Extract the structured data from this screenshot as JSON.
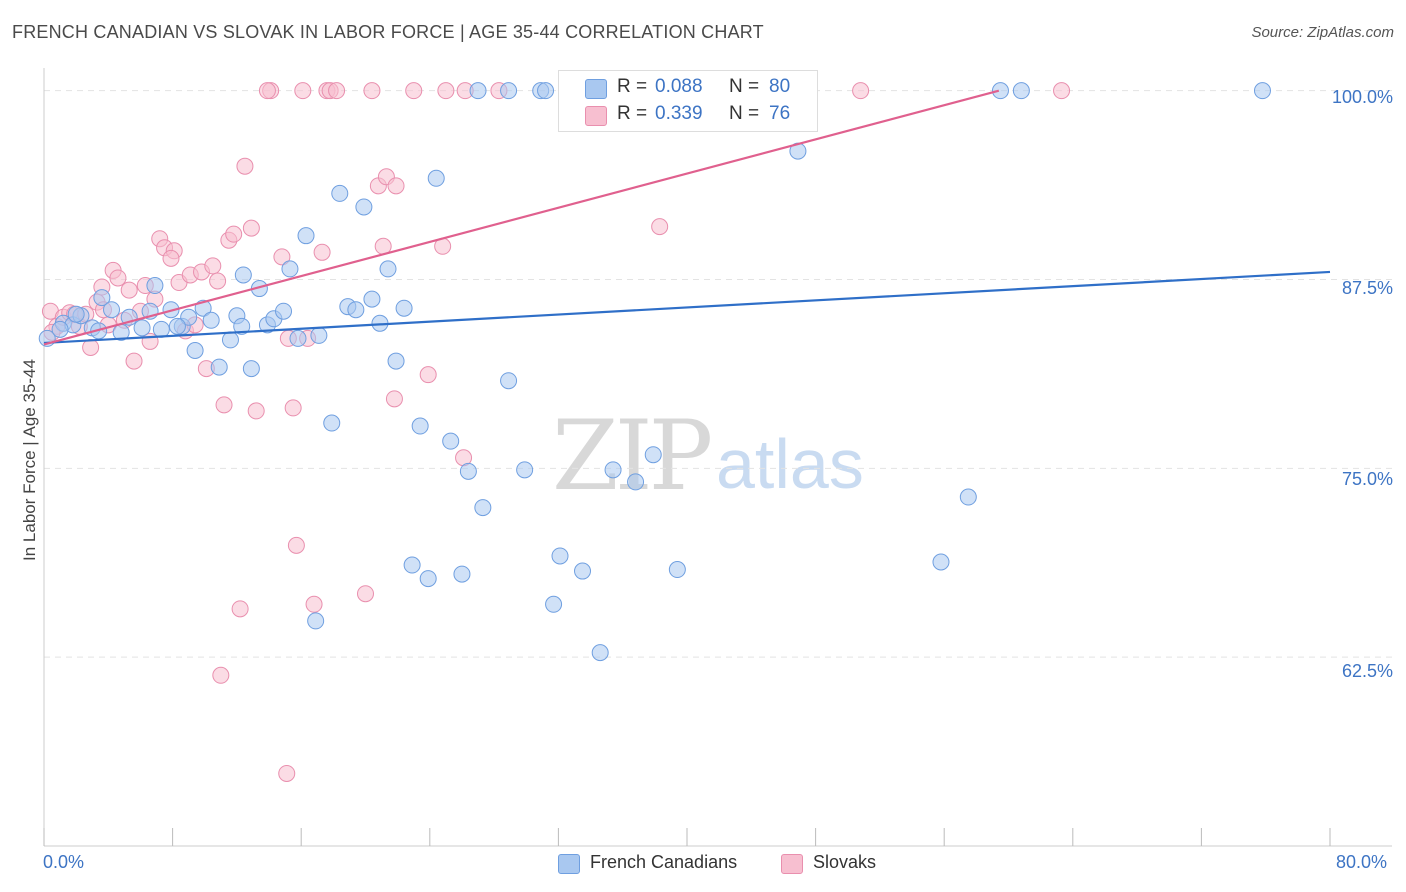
{
  "title": "FRENCH CANADIAN VS SLOVAK IN LABOR FORCE | AGE 35-44 CORRELATION CHART",
  "source": "Source: ZipAtlas.com",
  "watermark": {
    "zip": "ZIP",
    "atlas": "atlas"
  },
  "colors": {
    "blue_fill": "#a9c8f0",
    "blue_stroke": "#6f9fe0",
    "blue_line": "#2f6fc8",
    "pink_fill": "#f7bfd0",
    "pink_stroke": "#e98fae",
    "pink_line": "#e0608e",
    "axis_text": "#3d74c4",
    "grid": "#e3e3e3"
  },
  "legend": {
    "rows": [
      {
        "r_label": "R =",
        "r_value": "0.088",
        "n_label": "N =",
        "n_value": "80"
      },
      {
        "r_label": "R =",
        "r_value": "0.339",
        "n_label": "N =",
        "n_value": "76"
      }
    ]
  },
  "bottom_legend": {
    "series1": "French Canadians",
    "series2": "Slovaks"
  },
  "chart_data": {
    "type": "scatter",
    "title": "FRENCH CANADIAN VS SLOVAK IN LABOR FORCE | AGE 35-44 CORRELATION CHART",
    "xlabel": "",
    "ylabel": "In Labor Force | Age 35-44",
    "xlim": [
      0,
      80
    ],
    "ylim": [
      50,
      101.5
    ],
    "x_tick_labels": [
      "0.0%",
      "80.0%"
    ],
    "y_tick_labels": [
      "100.0%",
      "87.5%",
      "75.0%",
      "62.5%"
    ],
    "y_ticks": [
      100,
      87.5,
      75,
      62.5
    ],
    "series": [
      {
        "name": "French Canadians",
        "R": 0.088,
        "N": 80,
        "trend": {
          "x": [
            0,
            80
          ],
          "y": [
            83.3,
            88.0
          ]
        },
        "points": [
          [
            0.2,
            83.6
          ],
          [
            1.2,
            84.6
          ],
          [
            1.8,
            84.5
          ],
          [
            2.3,
            85.1
          ],
          [
            3.0,
            84.3
          ],
          [
            3.6,
            86.3
          ],
          [
            4.2,
            85.5
          ],
          [
            4.8,
            84.0
          ],
          [
            5.3,
            85.0
          ],
          [
            6.1,
            84.3
          ],
          [
            6.6,
            85.4
          ],
          [
            6.9,
            87.1
          ],
          [
            7.3,
            84.2
          ],
          [
            7.9,
            85.5
          ],
          [
            8.6,
            84.4
          ],
          [
            9.0,
            85.0
          ],
          [
            9.4,
            82.8
          ],
          [
            9.9,
            85.6
          ],
          [
            10.4,
            84.8
          ],
          [
            10.9,
            81.7
          ],
          [
            11.6,
            83.5
          ],
          [
            12.0,
            85.1
          ],
          [
            12.4,
            87.8
          ],
          [
            12.9,
            81.6
          ],
          [
            13.4,
            86.9
          ],
          [
            13.9,
            84.5
          ],
          [
            14.3,
            84.9
          ],
          [
            14.9,
            85.4
          ],
          [
            15.3,
            88.2
          ],
          [
            15.8,
            83.6
          ],
          [
            16.3,
            90.4
          ],
          [
            17.1,
            83.8
          ],
          [
            17.9,
            78.0
          ],
          [
            18.4,
            93.2
          ],
          [
            18.9,
            85.7
          ],
          [
            19.4,
            85.5
          ],
          [
            19.9,
            92.3
          ],
          [
            20.4,
            86.2
          ],
          [
            20.9,
            84.6
          ],
          [
            21.4,
            88.2
          ],
          [
            21.9,
            82.1
          ],
          [
            22.4,
            85.6
          ],
          [
            22.9,
            68.6
          ],
          [
            23.4,
            77.8
          ],
          [
            23.9,
            67.7
          ],
          [
            24.4,
            94.2
          ],
          [
            25.3,
            76.8
          ],
          [
            26.0,
            68.0
          ],
          [
            26.4,
            74.8
          ],
          [
            27.3,
            72.4
          ],
          [
            28.9,
            80.8
          ],
          [
            29.9,
            74.9
          ],
          [
            31.7,
            66.0
          ],
          [
            32.1,
            69.2
          ],
          [
            33.5,
            68.2
          ],
          [
            34.6,
            62.8
          ],
          [
            35.4,
            74.9
          ],
          [
            36.8,
            74.1
          ],
          [
            37.9,
            75.9
          ],
          [
            39.4,
            68.3
          ],
          [
            46.9,
            96.0
          ],
          [
            55.8,
            68.8
          ],
          [
            57.5,
            73.1
          ],
          [
            16.9,
            64.9
          ],
          [
            27.0,
            100.0
          ],
          [
            28.9,
            100.0
          ],
          [
            30.9,
            100.0
          ],
          [
            31.2,
            100.0
          ],
          [
            33.2,
            100.0
          ],
          [
            34.3,
            100.0
          ],
          [
            35.0,
            100.0
          ],
          [
            37.5,
            100.0
          ],
          [
            59.5,
            100.0
          ],
          [
            60.8,
            100.0
          ],
          [
            75.8,
            100.0
          ],
          [
            3.4,
            84.1
          ],
          [
            8.3,
            84.4
          ],
          [
            2.0,
            85.2
          ],
          [
            12.3,
            84.4
          ],
          [
            1.0,
            84.2
          ]
        ]
      },
      {
        "name": "Slovaks",
        "R": 0.339,
        "N": 76,
        "trend": {
          "x": [
            0,
            59.4
          ],
          "y": [
            83.2,
            100.0
          ]
        },
        "points": [
          [
            0.4,
            85.4
          ],
          [
            0.8,
            84.4
          ],
          [
            1.2,
            85.0
          ],
          [
            1.6,
            85.3
          ],
          [
            1.9,
            85.2
          ],
          [
            2.2,
            84.4
          ],
          [
            2.6,
            85.2
          ],
          [
            2.9,
            83.0
          ],
          [
            3.3,
            86.0
          ],
          [
            3.6,
            87.0
          ],
          [
            4.0,
            84.5
          ],
          [
            4.3,
            88.1
          ],
          [
            4.6,
            87.6
          ],
          [
            5.0,
            84.8
          ],
          [
            5.3,
            86.8
          ],
          [
            5.6,
            82.1
          ],
          [
            6.0,
            85.4
          ],
          [
            6.3,
            87.1
          ],
          [
            6.6,
            83.4
          ],
          [
            6.9,
            86.2
          ],
          [
            7.2,
            90.2
          ],
          [
            7.5,
            89.6
          ],
          [
            8.1,
            89.4
          ],
          [
            8.4,
            87.3
          ],
          [
            8.8,
            84.1
          ],
          [
            9.1,
            87.8
          ],
          [
            9.4,
            84.5
          ],
          [
            9.8,
            88.0
          ],
          [
            10.1,
            81.6
          ],
          [
            10.5,
            88.4
          ],
          [
            10.8,
            87.4
          ],
          [
            11.2,
            79.2
          ],
          [
            11.5,
            90.1
          ],
          [
            11.8,
            90.5
          ],
          [
            12.2,
            65.7
          ],
          [
            12.5,
            95.0
          ],
          [
            12.9,
            90.9
          ],
          [
            13.2,
            78.8
          ],
          [
            14.8,
            89.0
          ],
          [
            15.2,
            83.6
          ],
          [
            15.5,
            79.0
          ],
          [
            15.7,
            69.9
          ],
          [
            16.4,
            83.6
          ],
          [
            16.8,
            66.0
          ],
          [
            17.3,
            89.3
          ],
          [
            20.0,
            66.7
          ],
          [
            20.8,
            93.7
          ],
          [
            21.1,
            89.7
          ],
          [
            21.3,
            94.3
          ],
          [
            21.9,
            93.7
          ],
          [
            21.8,
            79.6
          ],
          [
            23.9,
            81.2
          ],
          [
            24.8,
            89.7
          ],
          [
            26.1,
            75.7
          ],
          [
            11.0,
            61.3
          ],
          [
            15.1,
            54.8
          ],
          [
            38.9,
            100.0
          ],
          [
            50.8,
            100.0
          ],
          [
            63.3,
            100.0
          ],
          [
            38.3,
            91.0
          ],
          [
            14.1,
            100.0
          ],
          [
            13.9,
            100.0
          ],
          [
            16.1,
            100.0
          ],
          [
            17.6,
            100.0
          ],
          [
            17.8,
            100.0
          ],
          [
            18.2,
            100.0
          ],
          [
            20.4,
            100.0
          ],
          [
            23.0,
            100.0
          ],
          [
            25.0,
            100.0
          ],
          [
            26.2,
            100.0
          ],
          [
            28.3,
            100.0
          ],
          [
            32.5,
            100.0
          ],
          [
            35.0,
            100.0
          ],
          [
            0.5,
            84.0
          ],
          [
            3.7,
            85.5
          ],
          [
            7.9,
            88.9
          ]
        ]
      }
    ]
  }
}
